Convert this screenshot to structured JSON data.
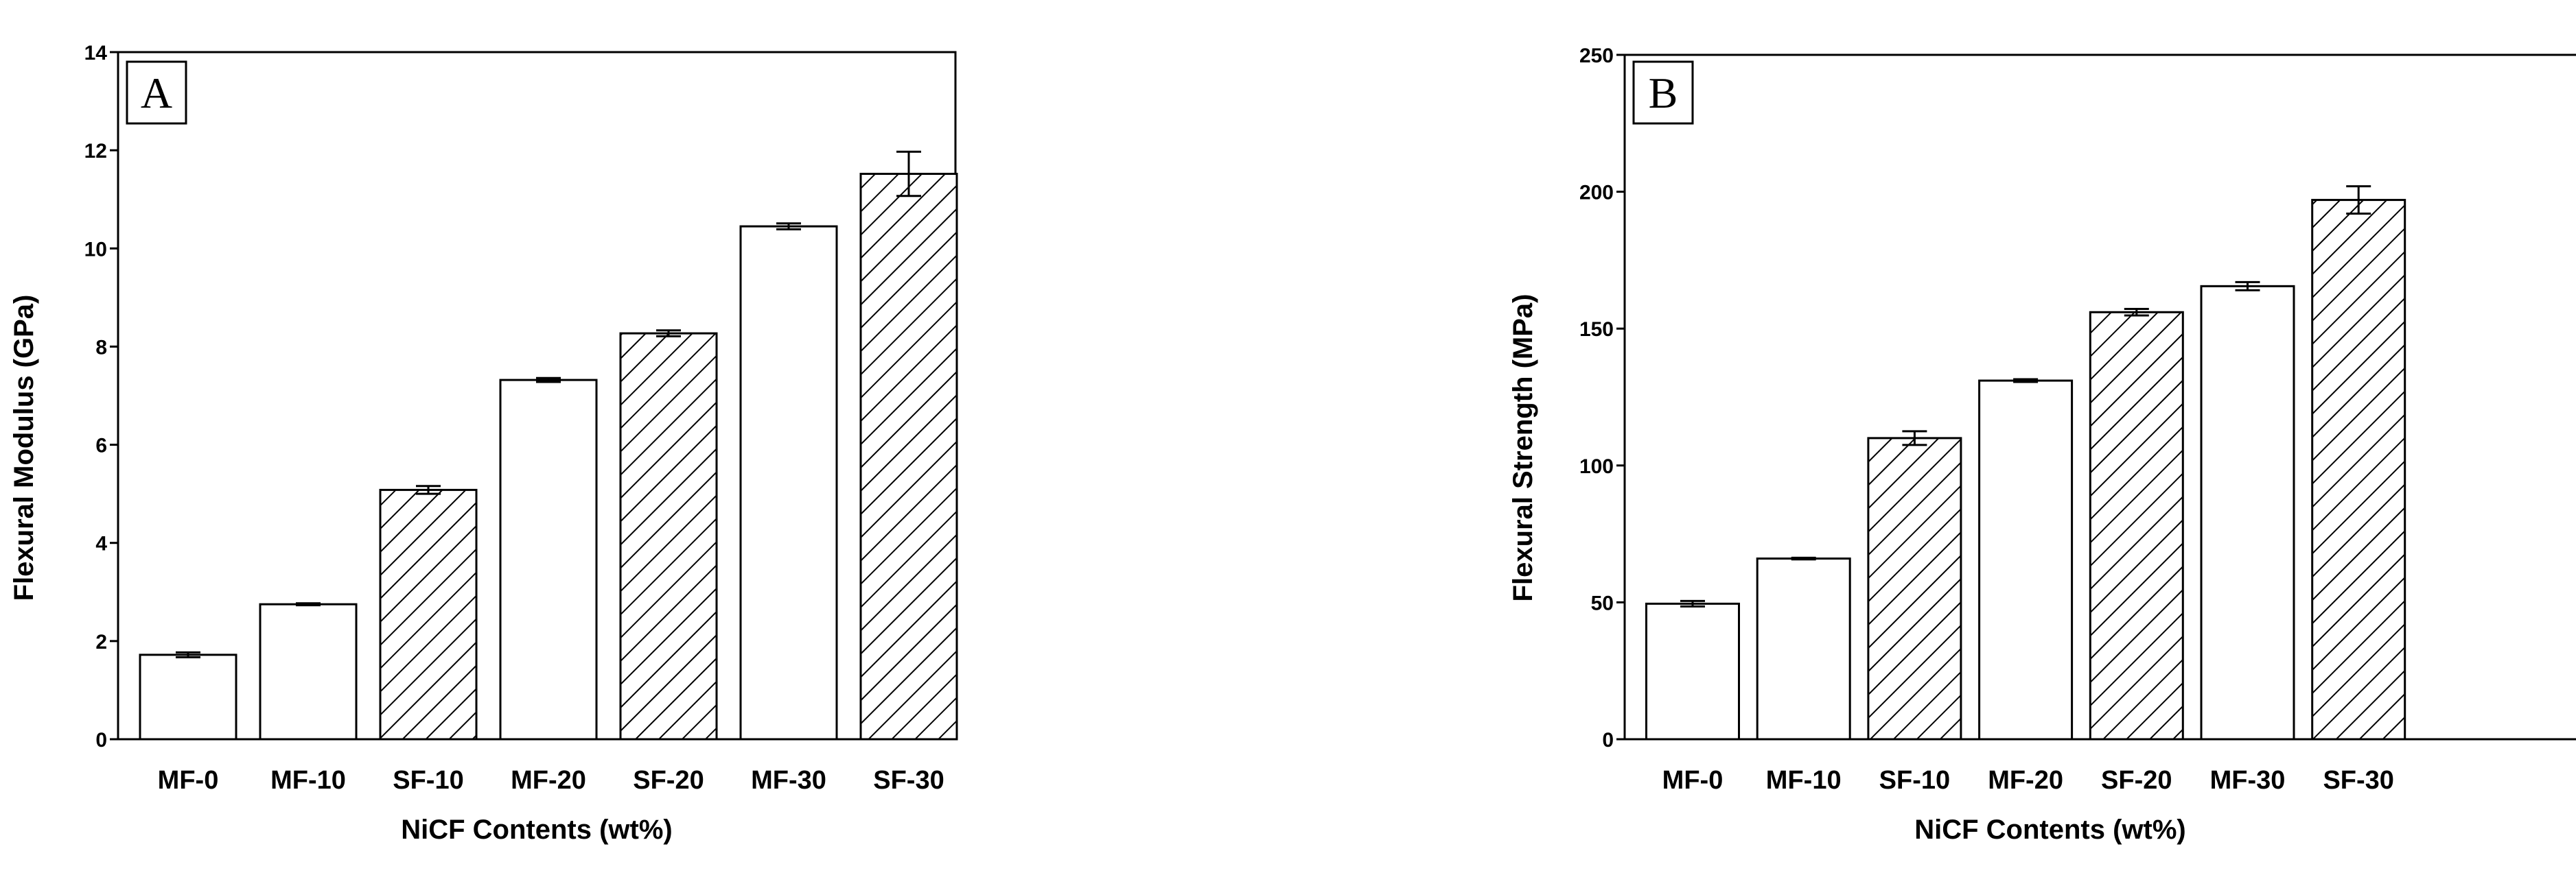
{
  "chart_data": [
    {
      "type": "bar",
      "panel_label": "A",
      "categories": [
        "MF-0",
        "MF-10",
        "SF-10",
        "MF-20",
        "SF-20",
        "MF-30",
        "SF-30"
      ],
      "values": [
        1.72,
        2.75,
        5.08,
        7.32,
        8.27,
        10.45,
        11.52
      ],
      "errors": [
        0.05,
        0.02,
        0.08,
        0.04,
        0.06,
        0.06,
        0.45
      ],
      "hatched": [
        false,
        false,
        true,
        false,
        true,
        false,
        true
      ],
      "title": "",
      "xlabel": "NiCF Contents (wt%)",
      "ylabel": "Flexural Modulus (GPa)",
      "ylim": [
        0,
        14
      ],
      "yticks": [
        0,
        2,
        4,
        6,
        8,
        10,
        12,
        14
      ],
      "grid": false
    },
    {
      "type": "bar",
      "panel_label": "B",
      "categories": [
        "MF-0",
        "MF-10",
        "SF-10",
        "MF-20",
        "SF-20",
        "MF-30",
        "SF-30"
      ],
      "values": [
        49.5,
        66,
        110,
        131,
        156,
        165.5,
        197
      ],
      "errors": [
        1,
        0.3,
        2.5,
        0.5,
        1.2,
        1.5,
        5
      ],
      "hatched": [
        false,
        false,
        true,
        false,
        true,
        false,
        true
      ],
      "title": "",
      "xlabel": "NiCF Contents (wt%)",
      "ylabel": "Flexural Strength (MPa)",
      "ylim": [
        0,
        250
      ],
      "yticks": [
        0,
        50,
        100,
        150,
        200,
        250
      ],
      "grid": false
    }
  ]
}
